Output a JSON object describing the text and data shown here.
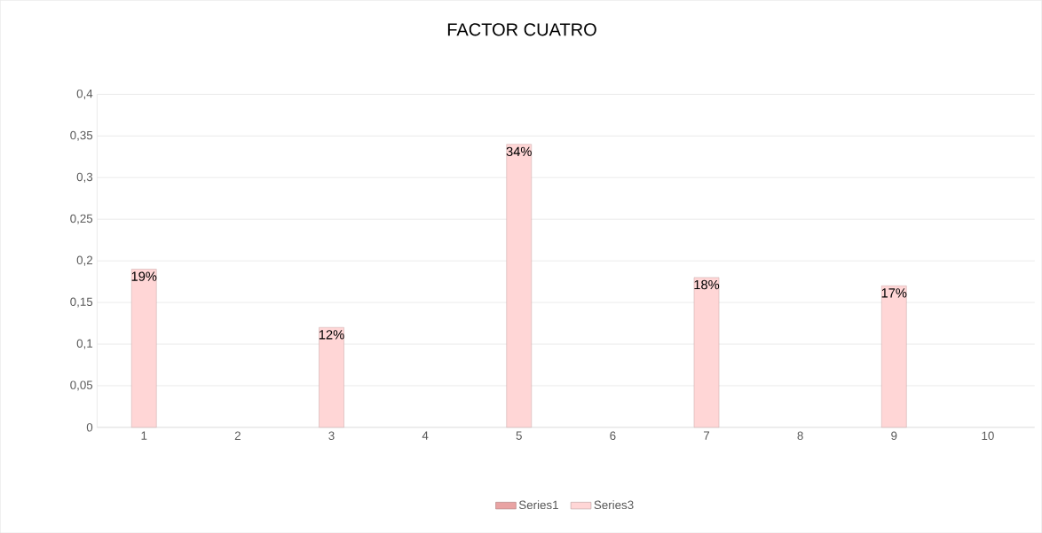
{
  "chart_data": {
    "type": "bar",
    "title": "FACTOR CUATRO",
    "categories": [
      "1",
      "2",
      "3",
      "4",
      "5",
      "6",
      "7",
      "8",
      "9",
      "10"
    ],
    "series": [
      {
        "name": "Series1",
        "color": "#e9a3a3",
        "values": [
          null,
          null,
          null,
          null,
          null,
          null,
          null,
          null,
          null,
          null
        ]
      },
      {
        "name": "Series3",
        "color": "#ffd6d6",
        "values": [
          0.19,
          null,
          0.12,
          null,
          0.34,
          null,
          0.18,
          null,
          0.17,
          null
        ],
        "value_labels": [
          "19%",
          null,
          "12%",
          null,
          "34%",
          null,
          "18%",
          null,
          "17%",
          null
        ]
      }
    ],
    "ylim": [
      0,
      0.4
    ],
    "yticks": [
      0,
      {
        "value": 0.05,
        "label": "0,05"
      },
      {
        "value": 0.1,
        "label": "0,1"
      },
      {
        "value": 0.15,
        "label": "0,15"
      },
      {
        "value": 0.2,
        "label": "0,2"
      },
      {
        "value": 0.25,
        "label": "0,25"
      },
      {
        "value": 0.3,
        "label": "0,3"
      },
      {
        "value": 0.35,
        "label": "0,35"
      },
      {
        "value": 0.4,
        "label": "0,4"
      }
    ],
    "grid": "y",
    "legend": "bottom"
  }
}
